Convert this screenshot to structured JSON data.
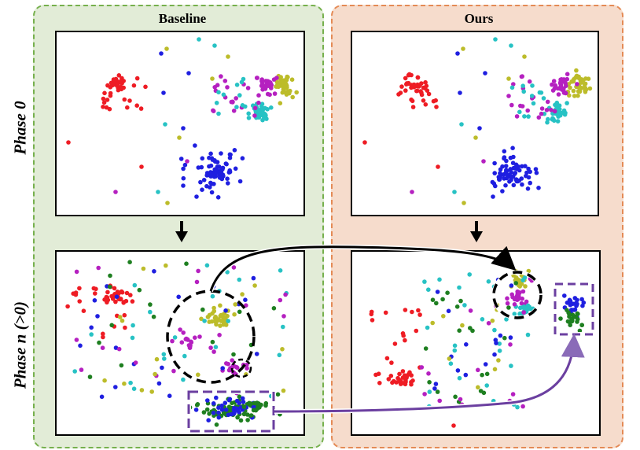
{
  "columns": {
    "baseline": "Baseline",
    "ours": "Ours"
  },
  "rows": {
    "phase0": "Phase 0",
    "phasen": "Phase n (>0)"
  },
  "colors": {
    "red": "#ee1c24",
    "blue": "#1f1fe0",
    "magenta": "#b520c0",
    "olive": "#bcbc2a",
    "cyan": "#27c2c4",
    "green": "#1e7f20",
    "black": "#000000",
    "purple": "#6b3fa0",
    "baseline_bg": "#e2ecd7",
    "baseline_border": "#76b04d",
    "ours_bg": "#f6dccc",
    "ours_border": "#e48a55"
  }
}
